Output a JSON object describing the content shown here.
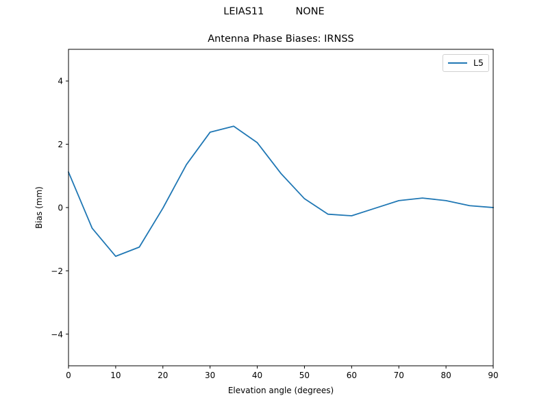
{
  "header": {
    "suptitle": "LEIAS11          NONE",
    "title": "Antenna Phase Biases: IRNSS"
  },
  "axes": {
    "xlabel": "Elevation angle (degrees)",
    "ylabel": "Bias (mm)",
    "x_ticks": [
      "0",
      "10",
      "20",
      "30",
      "40",
      "50",
      "60",
      "70",
      "80",
      "90"
    ],
    "y_ticks": [
      "4",
      "2",
      "0",
      "−2",
      "−4"
    ]
  },
  "legend": {
    "entries": [
      {
        "label": "L5",
        "color": "#1f77b4"
      }
    ]
  },
  "chart_data": {
    "type": "line",
    "title": "Antenna Phase Biases: IRNSS",
    "suptitle": "LEIAS11          NONE",
    "xlabel": "Elevation angle (degrees)",
    "ylabel": "Bias (mm)",
    "xlim": [
      0,
      90
    ],
    "ylim": [
      -5,
      5
    ],
    "x_ticks": [
      0,
      10,
      20,
      30,
      40,
      50,
      60,
      70,
      80,
      90
    ],
    "y_ticks": [
      -4,
      -2,
      0,
      2,
      4
    ],
    "grid": false,
    "legend_position": "upper right",
    "x": [
      0,
      5,
      10,
      15,
      20,
      25,
      30,
      35,
      40,
      45,
      50,
      55,
      60,
      65,
      70,
      75,
      80,
      85,
      90
    ],
    "series": [
      {
        "name": "L5",
        "color": "#1f77b4",
        "values": [
          1.12,
          -0.65,
          -1.54,
          -1.25,
          -0.02,
          1.36,
          2.38,
          2.57,
          2.05,
          1.08,
          0.28,
          -0.21,
          -0.26,
          -0.02,
          0.22,
          0.3,
          0.22,
          0.06,
          0.0
        ]
      }
    ]
  }
}
